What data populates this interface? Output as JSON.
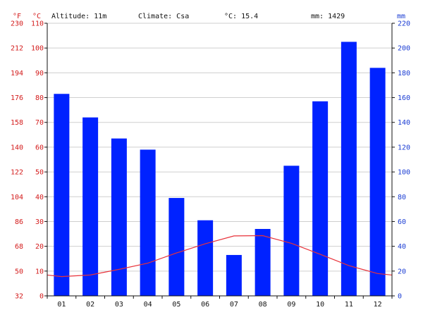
{
  "header": {
    "altitude": "Altitude: 11m",
    "climate": "Climate: Csa",
    "temperature": "°C: 15.4",
    "precipitation": "mm: 1429"
  },
  "axis_units": {
    "fahrenheit": "°F",
    "celsius": "°C",
    "millimeters": "mm"
  },
  "colors": {
    "bars": "#0022ff",
    "temperature_line": "#e8323a",
    "grid": "#cfcfcf",
    "fahrenheit_axis": "#d31a1a",
    "celsius_axis": "#d31a1a",
    "precipitation_axis": "#1a3cd3"
  },
  "chart_data": {
    "type": "bar",
    "grid": true,
    "categories": [
      "01",
      "02",
      "03",
      "04",
      "05",
      "06",
      "07",
      "08",
      "09",
      "10",
      "11",
      "12"
    ],
    "series": [
      {
        "type": "bar",
        "axis": "right",
        "unit": "mm",
        "values": [
          163,
          144,
          127,
          118,
          79,
          61,
          33,
          54,
          105,
          157,
          205,
          184
        ]
      },
      {
        "type": "line",
        "axis": "left",
        "unit": "°C",
        "values": [
          7.8,
          8.4,
          10.7,
          13.2,
          17.3,
          21.0,
          24.2,
          24.3,
          21.2,
          16.8,
          12.2,
          9.0
        ]
      }
    ],
    "y_left_celsius": {
      "ticks": [
        "0",
        "10",
        "20",
        "30",
        "40",
        "50",
        "60",
        "70",
        "80",
        "90",
        "100",
        "110"
      ],
      "ylim": [
        0,
        110
      ]
    },
    "y_left_fahrenheit": {
      "ticks": [
        "32",
        "50",
        "68",
        "86",
        "104",
        "122",
        "140",
        "158",
        "176",
        "194",
        "212",
        "230"
      ]
    },
    "y_right_mm": {
      "ticks": [
        "0",
        "20",
        "40",
        "60",
        "80",
        "100",
        "120",
        "140",
        "160",
        "180",
        "200",
        "220"
      ],
      "ylim": [
        0,
        220
      ]
    }
  }
}
